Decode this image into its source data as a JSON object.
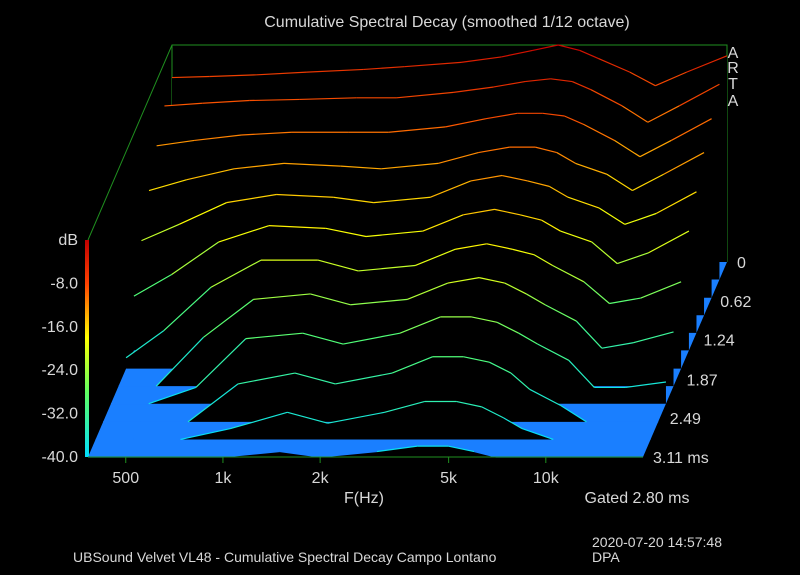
{
  "chart_data": {
    "type": "waterfall",
    "title": "Cumulative Spectral Decay (smoothed 1/12 octave)",
    "xlabel": "F(Hz)",
    "ylabel": "dB",
    "zlabel": "ms",
    "xscale": "log",
    "xlim": [
      382,
      20000
    ],
    "ylim": [
      -40,
      0
    ],
    "zlim": [
      0,
      3.11
    ],
    "x_ticks": [
      {
        "value": 500,
        "label": "500"
      },
      {
        "value": 1000,
        "label": "1k"
      },
      {
        "value": 2000,
        "label": "2k"
      },
      {
        "value": 5000,
        "label": "5k"
      },
      {
        "value": 10000,
        "label": "10k"
      }
    ],
    "y_ticks": [
      "dB",
      "-8.0",
      "-16.0",
      "-24.0",
      "-32.0",
      "-40.0"
    ],
    "y_tick_values": [
      0,
      -8,
      -16,
      -24,
      -32,
      -40
    ],
    "z_ticks": [
      {
        "value": 0,
        "label": "0"
      },
      {
        "value": 0.62,
        "label": "0.62"
      },
      {
        "value": 1.24,
        "label": "1.24"
      },
      {
        "value": 1.87,
        "label": "1.87"
      },
      {
        "value": 2.49,
        "label": "2.49"
      },
      {
        "value": 3.11,
        "label": "3.11 ms"
      }
    ],
    "gate_label": "Gated 2.80 ms",
    "frequencies": [
      382,
      500,
      700,
      1000,
      1500,
      2000,
      3000,
      4000,
      5000,
      6000,
      7000,
      8000,
      10000,
      12000,
      15000,
      20000
    ],
    "slices": [
      {
        "t": 0.0,
        "db": [
          -6,
          -5.8,
          -5.5,
          -5,
          -4.5,
          -4,
          -3.2,
          -2.2,
          -1,
          0,
          -1,
          -2.5,
          -5,
          -7.5,
          -5,
          -2
        ]
      },
      {
        "t": 0.28,
        "db": [
          -8,
          -7.5,
          -7,
          -6.8,
          -6.5,
          -6.5,
          -5.5,
          -4.5,
          -3.5,
          -3,
          -3.5,
          -5,
          -8,
          -11,
          -8,
          -4
        ]
      },
      {
        "t": 0.57,
        "db": [
          -12,
          -11,
          -10,
          -9.5,
          -9.5,
          -9.5,
          -8.5,
          -7,
          -6,
          -6,
          -6.5,
          -8,
          -11,
          -14,
          -11,
          -7
        ]
      },
      {
        "t": 0.85,
        "db": [
          -17,
          -15,
          -13,
          -12,
          -12.5,
          -13,
          -12,
          -10,
          -9,
          -9,
          -10,
          -12,
          -14,
          -17,
          -14,
          -10
        ]
      },
      {
        "t": 1.13,
        "db": [
          -23,
          -20,
          -16,
          -14.5,
          -15,
          -16,
          -15,
          -12,
          -11,
          -12,
          -13,
          -15,
          -17,
          -20,
          -18,
          -14
        ]
      },
      {
        "t": 1.41,
        "db": [
          -30,
          -26,
          -20,
          -17,
          -17.5,
          -19,
          -18,
          -15,
          -14,
          -15,
          -16,
          -18,
          -20,
          -24,
          -22,
          -18
        ]
      },
      {
        "t": 1.7,
        "db": [
          -38,
          -33,
          -25,
          -20,
          -20,
          -22,
          -21,
          -18,
          -17,
          -18,
          -19,
          -21,
          -24,
          -28,
          -27,
          -24
        ]
      },
      {
        "t": 1.98,
        "db": [
          -40,
          -40,
          -31,
          -24,
          -23,
          -25,
          -24,
          -21,
          -20,
          -21,
          -23,
          -25,
          -28,
          -33,
          -32,
          -30
        ]
      },
      {
        "t": 2.26,
        "db": [
          -40,
          -40,
          -37,
          -28,
          -27,
          -29,
          -27,
          -24,
          -24,
          -25,
          -27,
          -29,
          -32,
          -37,
          -37,
          -36
        ]
      },
      {
        "t": 2.55,
        "db": [
          -40,
          -40,
          -40,
          -33,
          -31,
          -33,
          -31,
          -28,
          -28,
          -29,
          -31,
          -34,
          -37,
          -40,
          -40,
          -40
        ]
      },
      {
        "t": 2.83,
        "db": [
          -40,
          -40,
          -40,
          -38,
          -35,
          -37,
          -35,
          -33,
          -33,
          -34,
          -36,
          -38,
          -40,
          -40,
          -40,
          -40
        ]
      },
      {
        "t": 3.11,
        "db": [
          -40,
          -40,
          -40,
          -40,
          -39,
          -40,
          -39,
          -38,
          -38,
          -39,
          -40,
          -40,
          -40,
          -40,
          -40,
          -40
        ]
      }
    ],
    "colors": {
      "floor": "#1a7fff",
      "frame": "#1f8f1f",
      "high": "#ff0000",
      "low": "#00ffff"
    }
  },
  "brand": [
    "A",
    "R",
    "T",
    "A"
  ],
  "footer": {
    "description": "UBSound Velvet VL48 - Cumulative Spectral Decay Campo Lontano",
    "datetime": "2020-07-20  14:57:48",
    "tag": "DPA"
  }
}
